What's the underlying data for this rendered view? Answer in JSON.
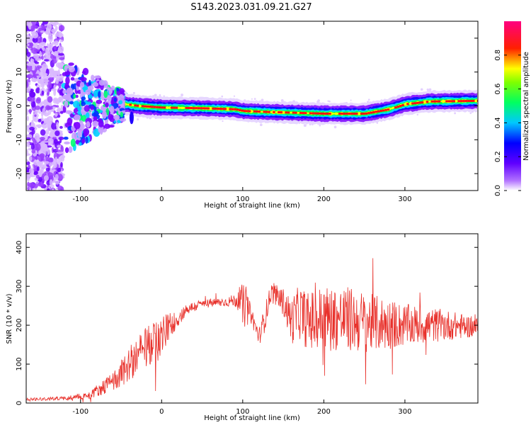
{
  "title": "S143.2023.031.09.21.G27",
  "chart_data": [
    {
      "type": "heatmap",
      "xlabel": "Height of straight line (km)",
      "ylabel": "Frequency (Hz)",
      "xlim": [
        -167,
        390
      ],
      "ylim": [
        -25,
        25
      ],
      "xticks": [
        -100,
        0,
        100,
        200,
        300
      ],
      "yticks": [
        -20,
        -10,
        0,
        10,
        20
      ],
      "colormap": [
        "#ffffff",
        "#7a00ff",
        "#0000ff",
        "#00e0ff",
        "#00ff00",
        "#ffff00",
        "#ff0000",
        "#ff0080"
      ],
      "colorbar": {
        "label": "Normalized spectral amplitude",
        "ticks": [
          "0.0",
          "0.2",
          "0.4",
          "0.6",
          "0.8"
        ],
        "range": [
          0,
          1
        ]
      },
      "ridge": {
        "x": [
          -45,
          -30,
          0,
          50,
          90,
          100,
          130,
          160,
          200,
          250,
          280,
          300,
          330,
          390
        ],
        "freq_hz": [
          0.5,
          0,
          -0.5,
          -0.7,
          -1.0,
          -1.5,
          -1.8,
          -2.0,
          -2.3,
          -2.3,
          -1.0,
          0.5,
          1.3,
          1.5
        ]
      },
      "grid": false
    },
    {
      "type": "line",
      "xlabel": "Height of straight line (km)",
      "ylabel": "SNR (10 * v/v)",
      "xlim": [
        -167,
        390
      ],
      "ylim": [
        0,
        435
      ],
      "xticks": [
        -100,
        0,
        100,
        200,
        300
      ],
      "yticks": [
        0,
        100,
        200,
        300,
        400
      ],
      "series": [
        {
          "color": "#e8302a",
          "envelope_x": [
            -167,
            -120,
            -90,
            -60,
            -40,
            -20,
            0,
            10,
            20,
            30,
            50,
            80,
            95,
            100,
            110,
            120,
            125,
            135,
            150,
            160,
            170,
            180,
            200,
            230,
            260,
            300,
            350,
            390
          ],
          "envelope_y": [
            10,
            12,
            20,
            55,
            100,
            140,
            170,
            200,
            215,
            240,
            255,
            260,
            265,
            250,
            230,
            170,
            200,
            285,
            260,
            210,
            235,
            210,
            220,
            215,
            205,
            200,
            200,
            195
          ],
          "noise_amplitude": [
            4,
            5,
            10,
            25,
            45,
            55,
            55,
            35,
            20,
            15,
            12,
            12,
            20,
            60,
            25,
            20,
            35,
            25,
            35,
            60,
            70,
            75,
            85,
            85,
            75,
            55,
            40,
            25
          ]
        }
      ],
      "grid": false
    }
  ]
}
